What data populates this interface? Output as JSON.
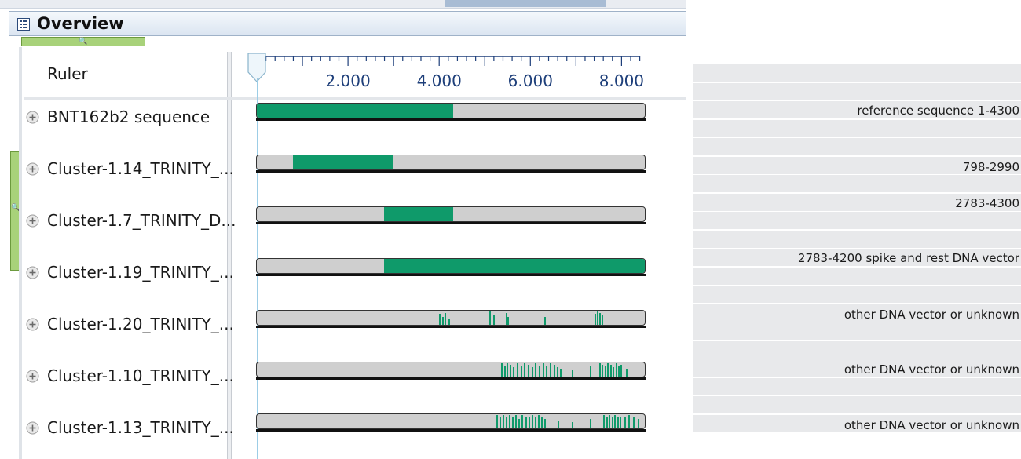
{
  "panel": {
    "title": "Overview",
    "title_icon": "overview-panel-icon",
    "zoom_icon": "magnifier-icon",
    "expand_icon": "plus-circle-icon"
  },
  "ruler": {
    "label": "Ruler",
    "ticks": [
      "2.000",
      "4.000",
      "6.000",
      "8.000"
    ]
  },
  "tracks": [
    {
      "name": "BNT162b2 sequence",
      "blocks": [
        [
          0,
          4300
        ]
      ],
      "spikes": []
    },
    {
      "name": "Cluster-1.14_TRINITY_...",
      "blocks": [
        [
          798,
          2990
        ]
      ],
      "spikes": []
    },
    {
      "name": "Cluster-1.7_TRINITY_D...",
      "blocks": [
        [
          2783,
          4300
        ]
      ],
      "spikes": []
    },
    {
      "name": "Cluster-1.19_TRINITY_...",
      "blocks": [
        [
          2783,
          8500
        ]
      ],
      "spikes": []
    },
    {
      "name": "Cluster-1.20_TRINITY_...",
      "blocks": [],
      "spikes": [
        [
          4000,
          0.8
        ],
        [
          4060,
          0.6
        ],
        [
          4120,
          0.9
        ],
        [
          4200,
          0.5
        ],
        [
          5100,
          1.0
        ],
        [
          5180,
          0.7
        ],
        [
          5450,
          0.9
        ],
        [
          5500,
          0.6
        ],
        [
          6300,
          0.6
        ],
        [
          7400,
          0.8
        ],
        [
          7450,
          1.0
        ],
        [
          7500,
          0.9
        ],
        [
          7560,
          0.7
        ]
      ]
    },
    {
      "name": "Cluster-1.10_TRINITY_...",
      "blocks": [],
      "spikes": [
        [
          5350,
          1.0
        ],
        [
          5420,
          0.8
        ],
        [
          5480,
          1.0
        ],
        [
          5550,
          0.9
        ],
        [
          5620,
          0.7
        ],
        [
          5700,
          1.0
        ],
        [
          5780,
          0.8
        ],
        [
          5860,
          1.0
        ],
        [
          5940,
          0.9
        ],
        [
          6020,
          0.7
        ],
        [
          6100,
          1.0
        ],
        [
          6180,
          0.85
        ],
        [
          6260,
          1.0
        ],
        [
          6340,
          0.8
        ],
        [
          6420,
          1.0
        ],
        [
          6500,
          0.9
        ],
        [
          6580,
          0.7
        ],
        [
          6650,
          0.6
        ],
        [
          6900,
          0.5
        ],
        [
          7300,
          0.8
        ],
        [
          7500,
          1.0
        ],
        [
          7560,
          0.9
        ],
        [
          7620,
          0.8
        ],
        [
          7680,
          1.0
        ],
        [
          7740,
          0.9
        ],
        [
          7800,
          0.7
        ],
        [
          7860,
          1.0
        ],
        [
          7920,
          0.8
        ],
        [
          7980,
          0.9
        ],
        [
          8100,
          0.6
        ]
      ]
    },
    {
      "name": "Cluster-1.13_TRINITY_...",
      "blocks": [],
      "spikes": [
        [
          5250,
          1.0
        ],
        [
          5320,
          0.9
        ],
        [
          5390,
          1.0
        ],
        [
          5460,
          0.8
        ],
        [
          5530,
          1.0
        ],
        [
          5600,
          0.9
        ],
        [
          5670,
          1.0
        ],
        [
          5740,
          0.7
        ],
        [
          5810,
          1.0
        ],
        [
          5880,
          0.9
        ],
        [
          5950,
          0.8
        ],
        [
          6020,
          1.0
        ],
        [
          6090,
          0.9
        ],
        [
          6160,
          1.0
        ],
        [
          6230,
          0.8
        ],
        [
          6300,
          0.7
        ],
        [
          6600,
          0.6
        ],
        [
          6900,
          0.5
        ],
        [
          7300,
          0.7
        ],
        [
          7600,
          1.0
        ],
        [
          7660,
          0.9
        ],
        [
          7720,
          1.0
        ],
        [
          7780,
          0.8
        ],
        [
          7840,
          1.0
        ],
        [
          7900,
          0.9
        ],
        [
          7960,
          0.8
        ],
        [
          8050,
          0.9
        ],
        [
          8150,
          1.0
        ],
        [
          8250,
          0.8
        ],
        [
          8350,
          0.7
        ]
      ]
    }
  ],
  "annotations": [
    "reference sequence 1-4300",
    "798-2990",
    "2783-4300",
    "2783-4200 spike and  rest DNA vector",
    "other DNA vector or unknown",
    "other DNA vector or unknown",
    "other DNA vector or unknown"
  ],
  "colors": {
    "coverage": "#0f9a6a",
    "track_bg": "#cfcfcf",
    "slider": "#a8d27a",
    "band": "#e8e9eb"
  }
}
